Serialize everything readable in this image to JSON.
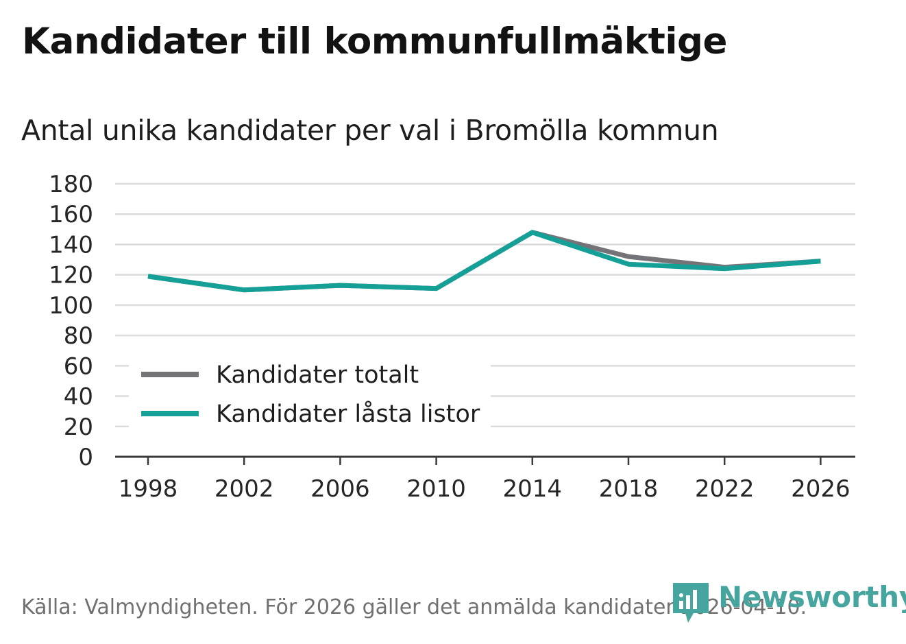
{
  "title": "Kandidater till kommunfullmäktige",
  "subtitle": "Antal unika kandidater per val i Bromölla kommun",
  "source": "Källa: Valmyndigheten. För 2026 gäller det anmälda kandidater 2026-04-10.",
  "logo": {
    "text": "Newsworthy",
    "icon": "newsworthy-logo-icon"
  },
  "colors": {
    "series_total": "#747378",
    "series_locked": "#14a097",
    "grid": "#dcdcdc",
    "axis": "#3a3a3a",
    "tick_text": "#262626",
    "logo": "#46a59e"
  },
  "chart_data": {
    "type": "line",
    "title": "Kandidater till kommunfullmäktige",
    "subtitle": "Antal unika kandidater per val i Bromölla kommun",
    "xlabel": "",
    "ylabel": "",
    "x": [
      1998,
      2002,
      2006,
      2010,
      2014,
      2018,
      2022,
      2026
    ],
    "x_tick_labels": [
      "1998",
      "2002",
      "2006",
      "2010",
      "2014",
      "2018",
      "2022",
      "2026"
    ],
    "ylim": [
      0,
      180
    ],
    "y_ticks": [
      0,
      20,
      40,
      60,
      80,
      100,
      120,
      140,
      160,
      180
    ],
    "y_tick_labels": [
      "0",
      "20",
      "40",
      "60",
      "80",
      "100",
      "120",
      "140",
      "160",
      "180"
    ],
    "grid": true,
    "legend_position": "bottom-left",
    "series": [
      {
        "name": "Kandidater totalt",
        "values": [
          119,
          110,
          113,
          111,
          148,
          132,
          125,
          129
        ]
      },
      {
        "name": "Kandidater låsta listor",
        "values": [
          119,
          110,
          113,
          111,
          148,
          127,
          124,
          129
        ]
      }
    ]
  }
}
